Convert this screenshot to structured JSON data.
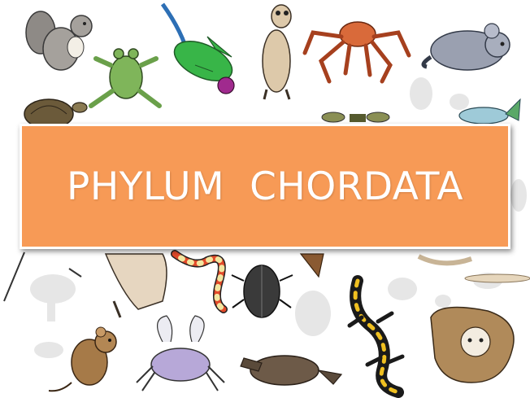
{
  "slide": {
    "title": "PHYLUM  CHORDATA",
    "banner_color": "#f79a56",
    "title_color": "#ffffff"
  },
  "illustrations": [
    "squirrel",
    "frog",
    "parrot",
    "meerkat",
    "spider-crab",
    "chinchilla",
    "turtle",
    "lizard",
    "dragonfly",
    "fish",
    "coral-snake",
    "beetle",
    "kangaroo-rat",
    "fire-salamander",
    "flying-squirrel",
    "mouse",
    "crab",
    "platypus"
  ]
}
